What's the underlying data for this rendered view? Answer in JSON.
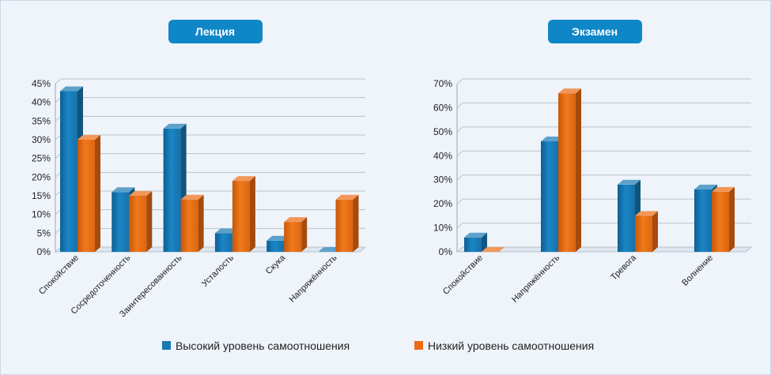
{
  "legend": {
    "high_label": "Высокий уровень самоотношения",
    "low_label": "Низкий уровень самоотношения"
  },
  "colors": {
    "high": "#1878b4",
    "low": "#ec6b12",
    "pill": "#0f86c6"
  },
  "chart_data": [
    {
      "type": "bar",
      "title": "Лекция",
      "categories": [
        "Спокойствие",
        "Сосредоточенность",
        "Заинтересованность",
        "Усталость",
        "Скука",
        "Напряжённость"
      ],
      "series": [
        {
          "name": "Высокий уровень самоотношения",
          "values": [
            43,
            16,
            33,
            5,
            3,
            0
          ]
        },
        {
          "name": "Низкий уровень самоотношения",
          "values": [
            30,
            15,
            14,
            19,
            8,
            14
          ]
        }
      ],
      "yticks": [
        "0%",
        "5%",
        "10%",
        "15%",
        "20%",
        "25%",
        "30%",
        "35%",
        "40%",
        "45%"
      ],
      "ylim": [
        0,
        45
      ],
      "grid": true
    },
    {
      "type": "bar",
      "title": "Экзамен",
      "categories": [
        "Спокойствие",
        "Напряжённость",
        "Тревога",
        "Волнение"
      ],
      "series": [
        {
          "name": "Высокий уровень самоотношения",
          "values": [
            6,
            46,
            28,
            26
          ]
        },
        {
          "name": "Низкий уровень самоотношения",
          "values": [
            0,
            66,
            15,
            25
          ]
        }
      ],
      "yticks": [
        "0%",
        "10%",
        "20%",
        "30%",
        "40%",
        "50%",
        "60%",
        "70%"
      ],
      "ylim": [
        0,
        70
      ],
      "grid": true
    }
  ]
}
